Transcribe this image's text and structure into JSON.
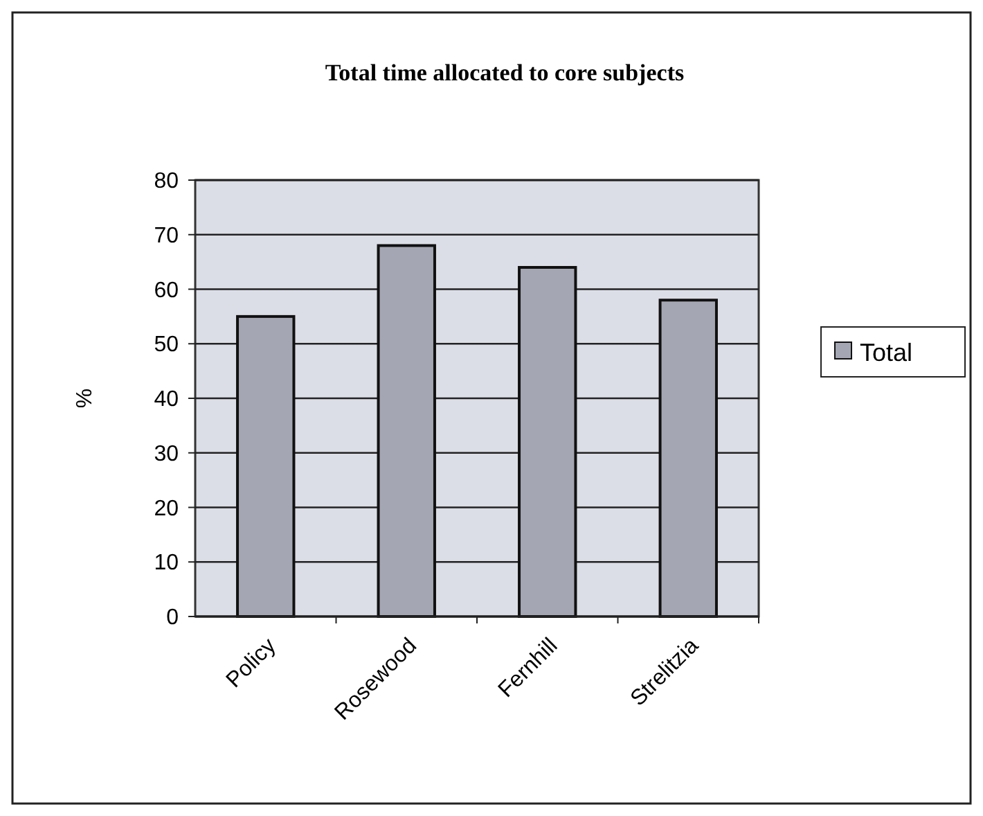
{
  "chart_data": {
    "type": "bar",
    "title": "Total time allocated to core subjects",
    "ylabel": "%",
    "categories": [
      "Policy",
      "Rosewood",
      "Fernhill",
      "Strelitzia"
    ],
    "series": [
      {
        "name": "Total",
        "color": "#a4a7b3",
        "values": [
          55,
          68,
          64,
          58
        ]
      }
    ],
    "ylim": [
      0,
      80
    ],
    "yticks": [
      0,
      10,
      20,
      30,
      40,
      50,
      60,
      70,
      80
    ],
    "grid": "y",
    "legend": "right"
  }
}
